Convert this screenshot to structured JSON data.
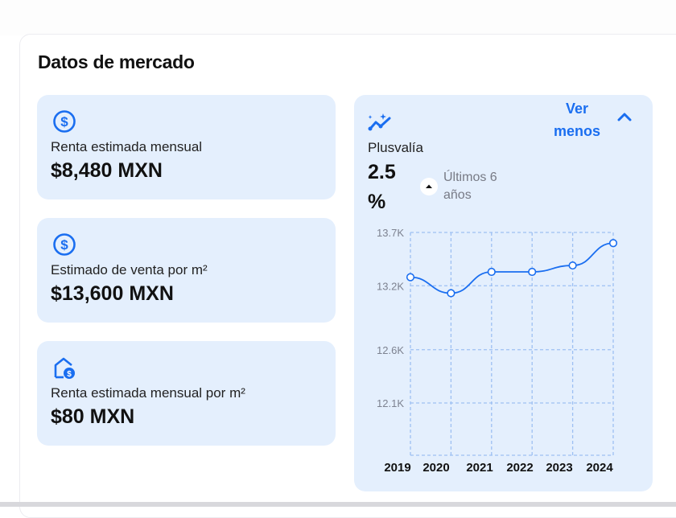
{
  "section_title": "Datos de mercado",
  "stats": [
    {
      "icon": "dollar-circle-icon",
      "label": "Renta estimada mensual",
      "value": "$8,480 MXN"
    },
    {
      "icon": "dollar-circle-icon",
      "label": "Estimado de venta por m²",
      "value": "$13,600 MXN"
    },
    {
      "icon": "house-dollar-icon",
      "label": "Renta estimada mensual por m²",
      "value": "$80 MXN"
    }
  ],
  "plusvalia": {
    "icon": "trend-sparkle-icon",
    "label": "Plusvalía",
    "value": "2.5",
    "unit": "%",
    "period_line1": "Últimos 6",
    "period_line2": "años",
    "toggle_line1": "Ver",
    "toggle_line2": "menos"
  },
  "colors": {
    "accent": "#1a6ef0",
    "card_bg": "#e4effd"
  },
  "chart_data": {
    "type": "line",
    "x": [
      "2019",
      "2020",
      "2021",
      "2022",
      "2023",
      "2024"
    ],
    "series": [
      {
        "name": "Plusvalía",
        "values": [
          13.28,
          13.13,
          13.33,
          13.33,
          13.39,
          13.6
        ]
      }
    ],
    "y_ticks": [
      13.7,
      13.2,
      12.6,
      12.1
    ],
    "y_tick_labels": [
      "13.7K",
      "13.2K",
      "12.6K",
      "12.1K"
    ],
    "ylim": [
      11.6,
      13.7
    ],
    "grid": true,
    "title": "",
    "xlabel": "",
    "ylabel": ""
  }
}
